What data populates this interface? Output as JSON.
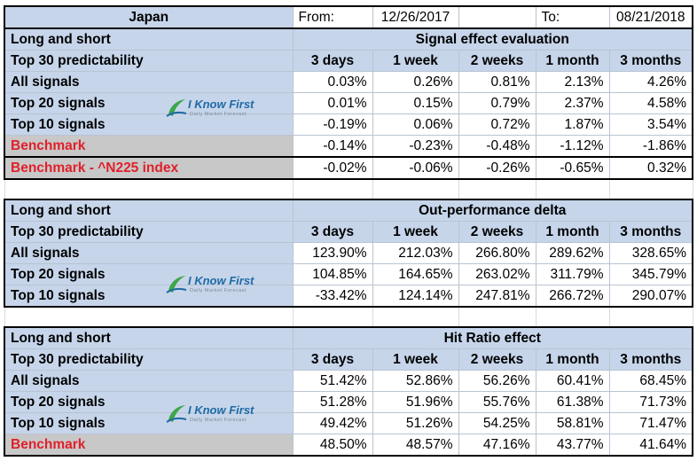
{
  "header": {
    "country": "Japan",
    "from_label": "From:",
    "from_date": "12/26/2017",
    "to_label": "To:",
    "to_date": "08/21/2018"
  },
  "columns": [
    "3 days",
    "1 week",
    "2 weeks",
    "1 month",
    "3 months"
  ],
  "logo": {
    "name": "I Know First",
    "tagline": "Daily Market Forecast"
  },
  "sections": [
    {
      "label": "Long and short",
      "title": "Signal effect evaluation",
      "predictability_label": "Top 30 predictability",
      "rows": [
        {
          "label": "All signals",
          "values": [
            "0.03%",
            "0.26%",
            "0.81%",
            "2.13%",
            "4.26%"
          ]
        },
        {
          "label": "Top 20 signals",
          "values": [
            "0.01%",
            "0.15%",
            "0.79%",
            "2.37%",
            "4.58%"
          ]
        },
        {
          "label": "Top 10 signals",
          "values": [
            "-0.19%",
            "0.06%",
            "0.72%",
            "1.87%",
            "3.54%"
          ]
        },
        {
          "label": "Benchmark",
          "values": [
            "-0.14%",
            "-0.23%",
            "-0.48%",
            "-1.12%",
            "-1.86%"
          ]
        },
        {
          "label": "Benchmark - ^N225 index",
          "values": [
            "-0.02%",
            "-0.06%",
            "-0.26%",
            "-0.65%",
            "0.32%"
          ]
        }
      ]
    },
    {
      "label": "Long and short",
      "title": "Out-performance delta",
      "predictability_label": "Top 30 predictability",
      "rows": [
        {
          "label": "All signals",
          "values": [
            "123.90%",
            "212.03%",
            "266.80%",
            "289.62%",
            "328.65%"
          ]
        },
        {
          "label": "Top 20 signals",
          "values": [
            "104.85%",
            "164.65%",
            "263.02%",
            "311.79%",
            "345.79%"
          ]
        },
        {
          "label": "Top 10 signals",
          "values": [
            "-33.42%",
            "124.14%",
            "247.81%",
            "266.72%",
            "290.07%"
          ]
        }
      ]
    },
    {
      "label": "Long and short",
      "title": "Hit Ratio effect",
      "predictability_label": "Top 30 predictability",
      "rows": [
        {
          "label": "All signals",
          "values": [
            "51.42%",
            "52.86%",
            "56.26%",
            "60.41%",
            "68.45%"
          ]
        },
        {
          "label": "Top 20 signals",
          "values": [
            "51.28%",
            "51.96%",
            "55.76%",
            "61.38%",
            "71.73%"
          ]
        },
        {
          "label": "Top 10 signals",
          "values": [
            "49.42%",
            "51.26%",
            "54.25%",
            "58.81%",
            "71.47%"
          ]
        },
        {
          "label": "Benchmark",
          "values": [
            "48.50%",
            "48.57%",
            "47.16%",
            "43.77%",
            "41.64%"
          ]
        }
      ]
    }
  ]
}
